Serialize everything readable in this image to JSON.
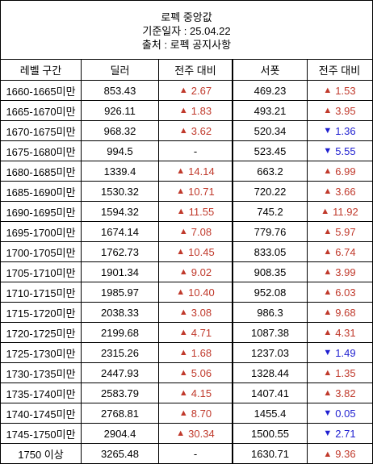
{
  "header": {
    "title": "로펙 중앙값",
    "date_line": "기준일자 : 25.04.22",
    "source_line": "출처 : 로펙 공지사항"
  },
  "columns": {
    "level": "레벨 구간",
    "dealer": "딜러",
    "dealer_change": "전주 대비",
    "support": "서폿",
    "support_change": "전주 대비"
  },
  "rows": [
    {
      "level": "1660-1665미만",
      "dealer": "853.43",
      "dealer_change": {
        "dir": "up",
        "value": "2.67"
      },
      "support": "469.23",
      "support_change": {
        "dir": "up",
        "value": "1.53"
      }
    },
    {
      "level": "1665-1670미만",
      "dealer": "926.11",
      "dealer_change": {
        "dir": "up",
        "value": "1.83"
      },
      "support": "493.21",
      "support_change": {
        "dir": "up",
        "value": "3.95"
      }
    },
    {
      "level": "1670-1675미만",
      "dealer": "968.32",
      "dealer_change": {
        "dir": "up",
        "value": "3.62"
      },
      "support": "520.34",
      "support_change": {
        "dir": "down",
        "value": "1.36"
      }
    },
    {
      "level": "1675-1680미만",
      "dealer": "994.5",
      "dealer_change": {
        "dir": "none",
        "value": "-"
      },
      "support": "523.45",
      "support_change": {
        "dir": "down",
        "value": "5.55"
      }
    },
    {
      "level": "1680-1685미만",
      "dealer": "1339.4",
      "dealer_change": {
        "dir": "up",
        "value": "14.14"
      },
      "support": "663.2",
      "support_change": {
        "dir": "up",
        "value": "6.99"
      }
    },
    {
      "level": "1685-1690미만",
      "dealer": "1530.32",
      "dealer_change": {
        "dir": "up",
        "value": "10.71"
      },
      "support": "720.22",
      "support_change": {
        "dir": "up",
        "value": "3.66"
      }
    },
    {
      "level": "1690-1695미만",
      "dealer": "1594.32",
      "dealer_change": {
        "dir": "up",
        "value": "11.55"
      },
      "support": "745.2",
      "support_change": {
        "dir": "up",
        "value": "11.92"
      }
    },
    {
      "level": "1695-1700미만",
      "dealer": "1674.14",
      "dealer_change": {
        "dir": "up",
        "value": "7.08"
      },
      "support": "779.76",
      "support_change": {
        "dir": "up",
        "value": "5.97"
      }
    },
    {
      "level": "1700-1705미만",
      "dealer": "1762.73",
      "dealer_change": {
        "dir": "up",
        "value": "10.45"
      },
      "support": "833.05",
      "support_change": {
        "dir": "up",
        "value": "6.74"
      }
    },
    {
      "level": "1705-1710미만",
      "dealer": "1901.34",
      "dealer_change": {
        "dir": "up",
        "value": "9.02"
      },
      "support": "908.35",
      "support_change": {
        "dir": "up",
        "value": "3.99"
      }
    },
    {
      "level": "1710-1715미만",
      "dealer": "1985.97",
      "dealer_change": {
        "dir": "up",
        "value": "10.40"
      },
      "support": "952.08",
      "support_change": {
        "dir": "up",
        "value": "6.03"
      }
    },
    {
      "level": "1715-1720미만",
      "dealer": "2038.33",
      "dealer_change": {
        "dir": "up",
        "value": "3.08"
      },
      "support": "986.3",
      "support_change": {
        "dir": "up",
        "value": "9.68"
      }
    },
    {
      "level": "1720-1725미만",
      "dealer": "2199.68",
      "dealer_change": {
        "dir": "up",
        "value": "4.71"
      },
      "support": "1087.38",
      "support_change": {
        "dir": "up",
        "value": "4.31"
      }
    },
    {
      "level": "1725-1730미만",
      "dealer": "2315.26",
      "dealer_change": {
        "dir": "up",
        "value": "1.68"
      },
      "support": "1237.03",
      "support_change": {
        "dir": "down",
        "value": "1.49"
      }
    },
    {
      "level": "1730-1735미만",
      "dealer": "2447.93",
      "dealer_change": {
        "dir": "up",
        "value": "5.06"
      },
      "support": "1328.44",
      "support_change": {
        "dir": "up",
        "value": "1.35"
      }
    },
    {
      "level": "1735-1740미만",
      "dealer": "2583.79",
      "dealer_change": {
        "dir": "up",
        "value": "4.15"
      },
      "support": "1407.41",
      "support_change": {
        "dir": "up",
        "value": "3.82"
      }
    },
    {
      "level": "1740-1745미만",
      "dealer": "2768.81",
      "dealer_change": {
        "dir": "up",
        "value": "8.70"
      },
      "support": "1455.4",
      "support_change": {
        "dir": "down",
        "value": "0.05"
      }
    },
    {
      "level": "1745-1750미만",
      "dealer": "2904.4",
      "dealer_change": {
        "dir": "up",
        "value": "30.34"
      },
      "support": "1500.55",
      "support_change": {
        "dir": "down",
        "value": "2.71"
      }
    },
    {
      "level": "1750 이상",
      "dealer": "3265.48",
      "dealer_change": {
        "dir": "none",
        "value": "-"
      },
      "support": "1630.71",
      "support_change": {
        "dir": "up",
        "value": "9.36"
      }
    }
  ],
  "symbols": {
    "up": "▲",
    "down": "▼"
  },
  "colors": {
    "up": "#c0392b",
    "down": "#1f1fd0",
    "border": "#000000"
  }
}
